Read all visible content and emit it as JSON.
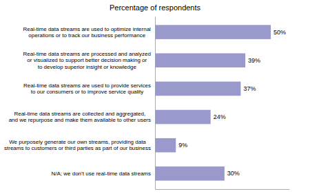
{
  "chart_data": {
    "type": "bar",
    "orientation": "horizontal",
    "title": "Percentage of respondents",
    "categories": [
      "Real-time data streams are used to optimize internal\noperations or to track our business performance",
      "Real-time data streams are processed and analyzed\nor visualized to support better decision making or\nto develop superior insight or knowledge",
      "Real-time data streams are used to provide services\nto our consumers or to improve service quality",
      "Real-time data streams are collected and aggregated,\nand we repurpose and make them available to other users",
      "We purposely generate our own streams, providing data\nstreams to customers or third parties as part of our business",
      "N/A; we don’t use real-time data streams"
    ],
    "values": [
      50,
      39,
      37,
      24,
      9,
      30
    ],
    "value_labels": [
      "50%",
      "39%",
      "37%",
      "24%",
      "9%",
      "30%"
    ],
    "data_labels": true,
    "color": "#9999cc",
    "xlim": [
      0,
      58
    ],
    "tick_labels": false,
    "grid": false
  }
}
